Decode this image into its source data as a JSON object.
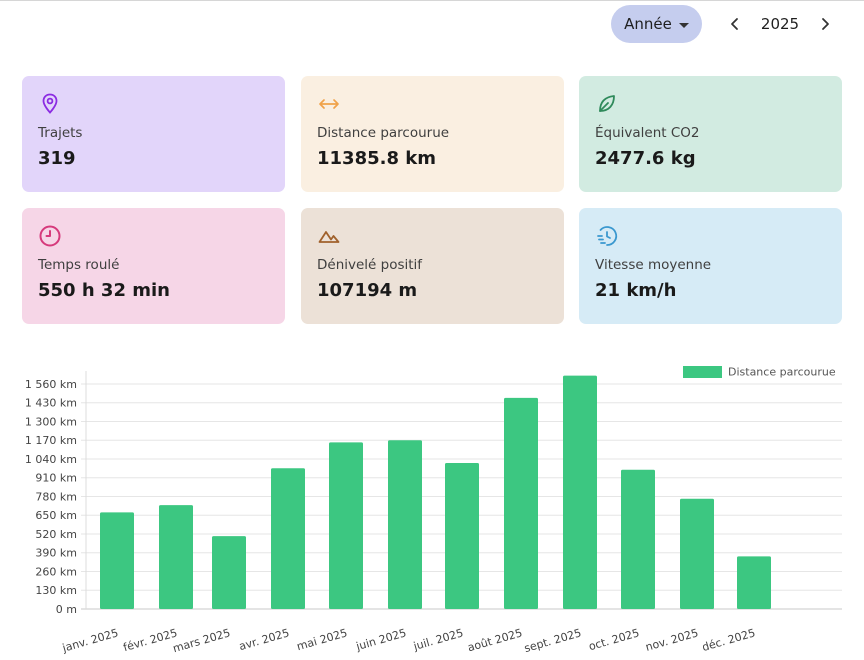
{
  "header": {
    "period_label": "Année",
    "year": "2025"
  },
  "cards": [
    {
      "label": "Trajets",
      "value": "319",
      "icon": "location-pin-icon",
      "bg": "#e2d5fa",
      "icon_color": "#8b2be2"
    },
    {
      "label": "Distance parcourue",
      "value": "11385.8 km",
      "icon": "horizontal-arrows-icon",
      "bg": "#faefe1",
      "icon_color": "#f0a24a"
    },
    {
      "label": "Équivalent CO2",
      "value": "2477.6 kg",
      "icon": "leaf-icon",
      "bg": "#d2ebe1",
      "icon_color": "#2f8a5b"
    },
    {
      "label": "Temps roulé",
      "value": "550 h 32 min",
      "icon": "clock-icon",
      "bg": "#f6d6e7",
      "icon_color": "#d63a7c"
    },
    {
      "label": "Dénivelé positif",
      "value": "107194 m",
      "icon": "mountain-icon",
      "bg": "#ece1d7",
      "icon_color": "#a0612c"
    },
    {
      "label": "Vitesse moyenne",
      "value": "21 km/h",
      "icon": "speed-history-icon",
      "bg": "#d6ebf6",
      "icon_color": "#3a98cf"
    }
  ],
  "chart_data": {
    "type": "bar",
    "categories": [
      "janv. 2025",
      "févr. 2025",
      "mars 2025",
      "avr. 2025",
      "mai 2025",
      "juin 2025",
      "juil. 2025",
      "août 2025",
      "sept. 2025",
      "oct. 2025",
      "nov. 2025",
      "déc. 2025"
    ],
    "series": [
      {
        "name": "Distance parcourue",
        "values": [
          670,
          720,
          505,
          976,
          1155,
          1170,
          1012,
          1464,
          1618,
          965,
          764,
          365
        ],
        "color": "#3cc781"
      }
    ],
    "y_ticks": [
      "0 m",
      "130 km",
      "260 km",
      "390 km",
      "520 km",
      "650 km",
      "780 km",
      "910 km",
      "1 040 km",
      "1 170 km",
      "1 300 km",
      "1 430 km",
      "1 560 km"
    ],
    "ylim": [
      0,
      1650
    ],
    "tick_step": 130,
    "grid": true,
    "legend": "top-right"
  }
}
